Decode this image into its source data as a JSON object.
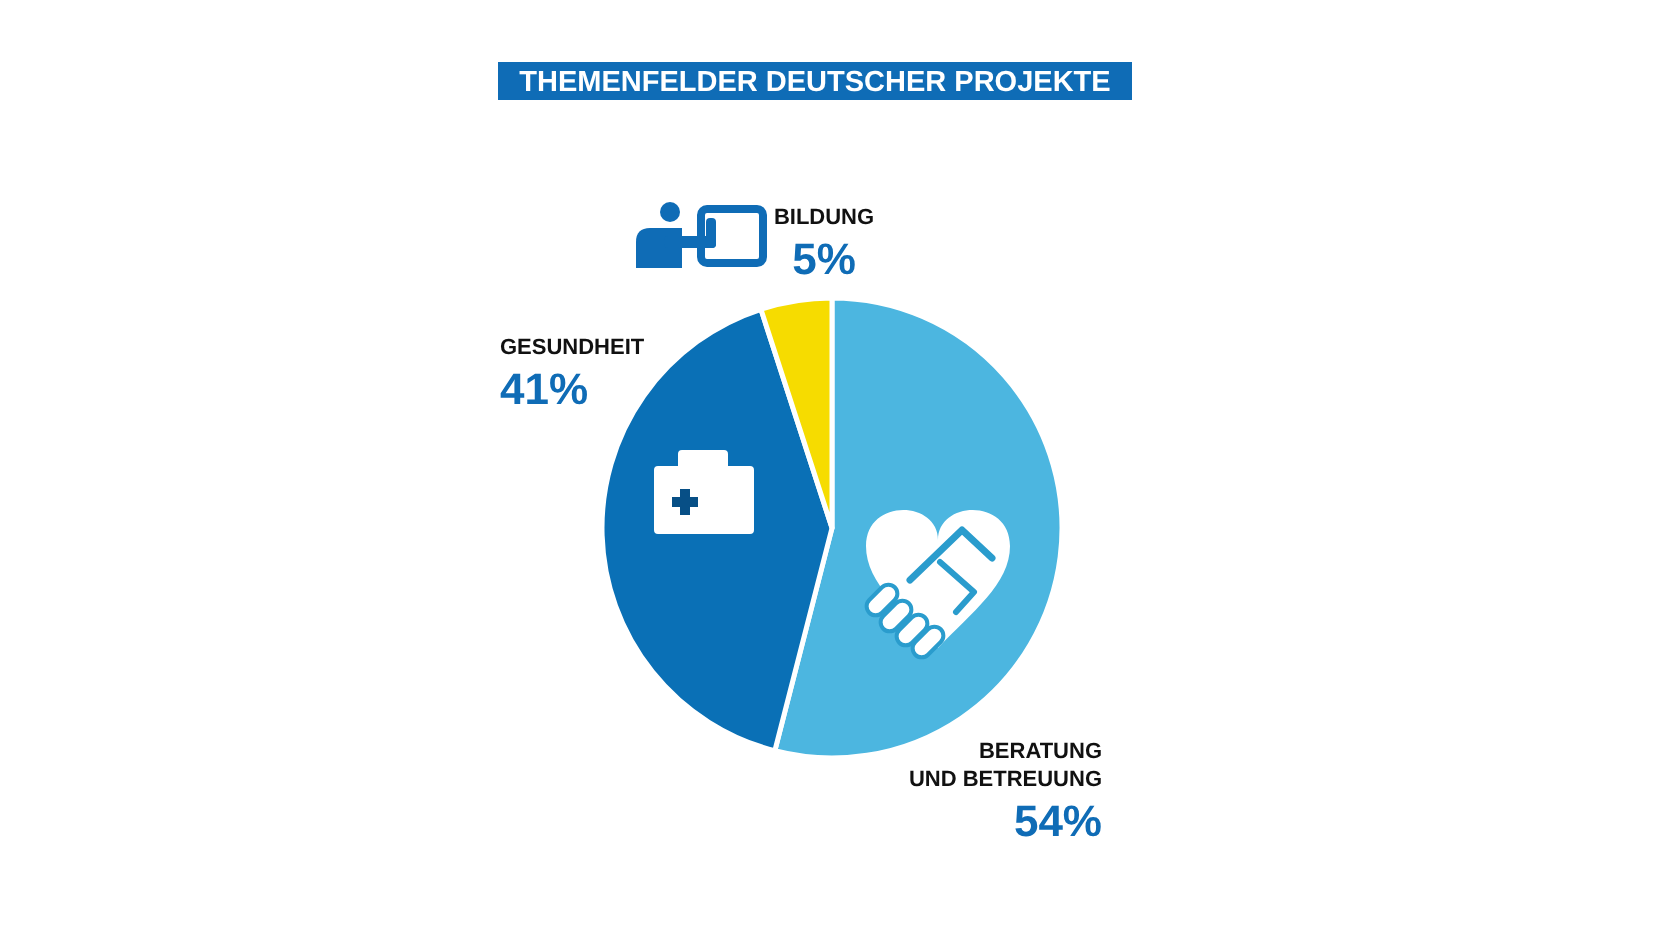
{
  "chart_data": {
    "type": "pie",
    "title": "THEMENFELDER DEUTSCHER PROJEKTE",
    "categories": [
      "BERATUNG UND BETREUUNG",
      "GESUNDHEIT",
      "BILDUNG"
    ],
    "values": [
      54,
      41,
      5
    ],
    "colors": [
      "#4cb6e0",
      "#0a70b6",
      "#f6dc00"
    ],
    "value_labels": [
      "54%",
      "41%",
      "5%"
    ]
  }
}
